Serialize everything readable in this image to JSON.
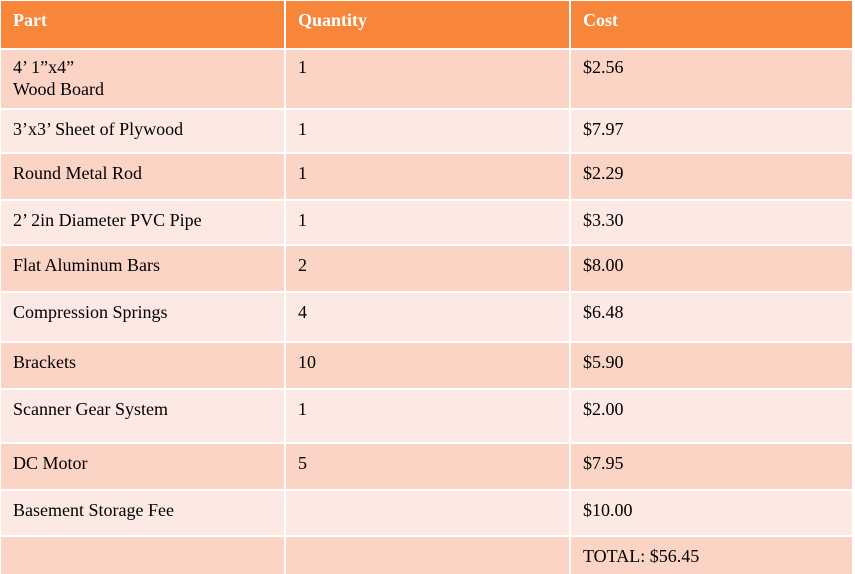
{
  "table": {
    "headers": [
      "Part",
      "Quantity",
      "Cost"
    ],
    "rows": [
      {
        "part": "4’ 1”x4”\nWood Board",
        "quantity": "1",
        "cost": "$2.56"
      },
      {
        "part": "3’x3’ Sheet of Plywood",
        "quantity": "1",
        "cost": "$7.97"
      },
      {
        "part": "Round Metal Rod",
        "quantity": "1",
        "cost": "$2.29"
      },
      {
        "part": "2’ 2in Diameter PVC Pipe",
        "quantity": "1",
        "cost": "$3.30"
      },
      {
        "part": "Flat Aluminum Bars",
        "quantity": "2",
        "cost": "$8.00"
      },
      {
        "part": "Compression Springs",
        "quantity": "4",
        "cost": "$6.48"
      },
      {
        "part": "Brackets",
        "quantity": "10",
        "cost": "$5.90"
      },
      {
        "part": "Scanner Gear System",
        "quantity": "1",
        "cost": "$2.00"
      },
      {
        "part": "DC Motor",
        "quantity": "5",
        "cost": "$7.95"
      },
      {
        "part": "Basement Storage Fee",
        "quantity": "",
        "cost": "$10.00"
      },
      {
        "part": "",
        "quantity": "",
        "cost": "TOTAL:  $56.45"
      }
    ]
  },
  "colors": {
    "header": "#f7853a",
    "row_dark": "#fcd4c6",
    "row_light": "#fde9e3"
  }
}
